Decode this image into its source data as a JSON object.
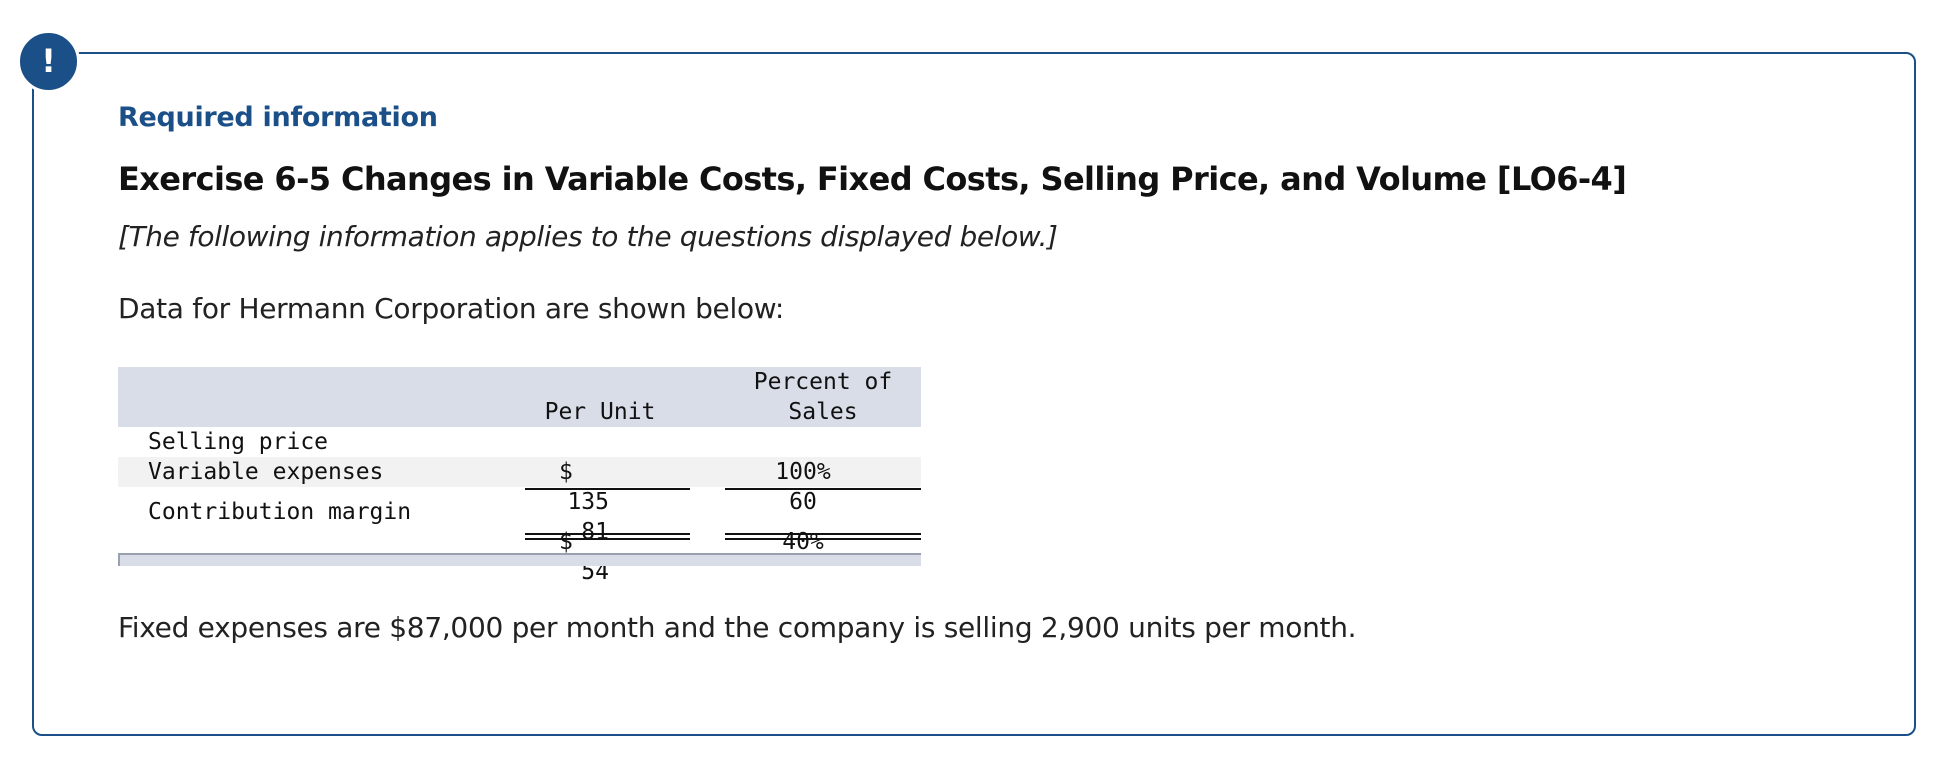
{
  "alert": {
    "icon": "exclamation-icon",
    "glyph": "!",
    "color": "#1b4f88"
  },
  "heading": "Required information",
  "title": "Exercise 6-5 Changes in Variable Costs, Fixed Costs, Selling Price, and Volume [LO6-4]",
  "instructions": "[The following information applies to the questions displayed below.]",
  "intro": "Data for Hermann Corporation are shown below:",
  "table": {
    "columns": {
      "per_unit": "Per Unit",
      "percent_line1": "Percent of",
      "percent_line2": "Sales"
    },
    "rows": [
      {
        "label": "Selling price",
        "per_unit_prefix": "$",
        "per_unit": "135",
        "percent": "100%"
      },
      {
        "label": "Variable expenses",
        "per_unit_prefix": "",
        "per_unit": "81",
        "percent": "60"
      },
      {
        "label": "Contribution margin",
        "per_unit_prefix": "$",
        "per_unit": "54",
        "percent": "40%"
      }
    ]
  },
  "footer_text": "Fixed expenses are $87,000 per month and the company is selling 2,900 units per month."
}
